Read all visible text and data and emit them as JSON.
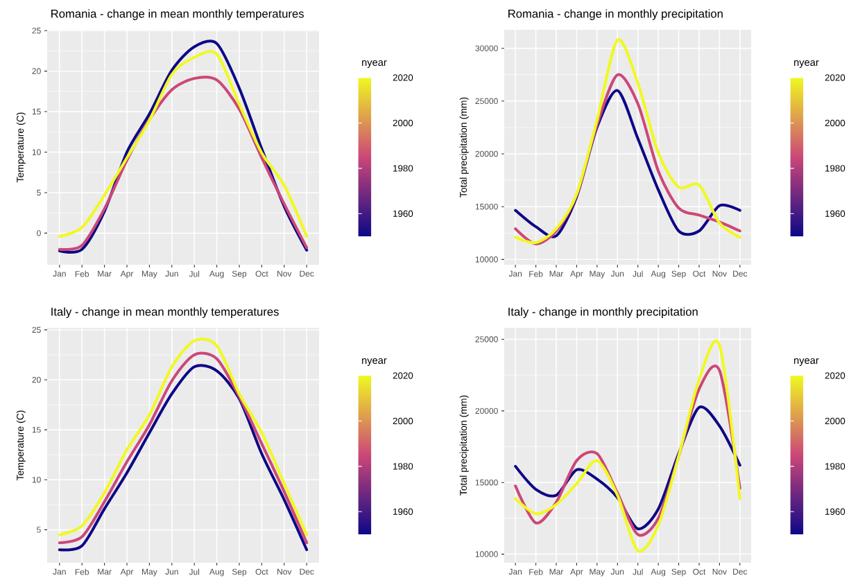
{
  "chart_data": [
    {
      "type": "line",
      "title": "Romania - change in mean monthly temperatures",
      "ylabel": "Temperature (C)",
      "categories": [
        "Jan",
        "Feb",
        "Mar",
        "Apr",
        "May",
        "Jun",
        "Jul",
        "Aug",
        "Sep",
        "Oct",
        "Nov",
        "Dec"
      ],
      "series": [
        {
          "color": "#0d0887",
          "values": [
            -2.2,
            -2.0,
            2.7,
            10.0,
            14.7,
            20.1,
            23.0,
            23.4,
            17.9,
            10.4,
            3.3,
            -2.1
          ]
        },
        {
          "color": "#cc4778",
          "values": [
            -2.0,
            -1.5,
            3.0,
            9.0,
            14.0,
            17.7,
            19.1,
            18.9,
            15.3,
            9.3,
            3.6,
            -1.8
          ]
        },
        {
          "color": "#f0f921",
          "values": [
            -0.4,
            0.7,
            4.7,
            9.3,
            13.9,
            19.6,
            21.7,
            22.1,
            15.9,
            9.9,
            5.9,
            -0.4
          ]
        }
      ],
      "ylim": [
        -3.9,
        25.1
      ],
      "yticks": [
        0,
        5,
        10,
        15,
        20,
        25
      ],
      "grid": true,
      "clabel": "nyear",
      "clim": [
        1950,
        2020
      ],
      "cticks": [
        1960,
        1980,
        2000,
        2020
      ]
    },
    {
      "type": "line",
      "title": "Romania - change in monthly precipitation",
      "ylabel": "Total precipitation (mm)",
      "categories": [
        "Jan",
        "Feb",
        "Mar",
        "Apr",
        "May",
        "Jun",
        "Jul",
        "Aug",
        "Sep",
        "Oct",
        "Nov",
        "Dec"
      ],
      "series": [
        {
          "color": "#0d0887",
          "values": [
            14650,
            13100,
            12240,
            15950,
            22540,
            26000,
            21450,
            16600,
            12700,
            12700,
            15100,
            14650
          ]
        },
        {
          "color": "#cc4778",
          "values": [
            12900,
            11470,
            12700,
            16070,
            22760,
            27480,
            24740,
            18380,
            14870,
            14200,
            13550,
            12700
          ]
        },
        {
          "color": "#f0f921",
          "values": [
            12100,
            11600,
            12900,
            16200,
            23200,
            30770,
            26700,
            20100,
            16850,
            17050,
            13450,
            12100
          ]
        }
      ],
      "ylim": [
        9500,
        31750
      ],
      "yticks": [
        10000,
        15000,
        20000,
        25000,
        30000
      ],
      "grid": true,
      "clabel": "nyear",
      "clim": [
        1950,
        2020
      ],
      "cticks": [
        1960,
        1980,
        2000,
        2020
      ]
    },
    {
      "type": "line",
      "title": "Italy - change in mean monthly temperatures",
      "ylabel": "Temperature (C)",
      "categories": [
        "Jan",
        "Feb",
        "Mar",
        "Apr",
        "May",
        "Jun",
        "Jul",
        "Aug",
        "Sep",
        "Oct",
        "Nov",
        "Dec"
      ],
      "series": [
        {
          "color": "#0d0887",
          "values": [
            3.0,
            3.4,
            7.1,
            10.7,
            14.7,
            18.6,
            21.3,
            20.9,
            18.1,
            12.6,
            8.0,
            3.0
          ]
        },
        {
          "color": "#cc4778",
          "values": [
            3.7,
            4.3,
            7.8,
            11.8,
            15.5,
            19.9,
            22.5,
            22.1,
            18.3,
            13.6,
            8.8,
            3.7
          ]
        },
        {
          "color": "#f0f921",
          "values": [
            4.5,
            5.4,
            8.7,
            13.0,
            16.5,
            21.3,
            23.9,
            23.4,
            18.6,
            14.7,
            9.6,
            4.5
          ]
        }
      ],
      "ylim": [
        1.7,
        25.2
      ],
      "yticks": [
        5,
        10,
        15,
        20,
        25
      ],
      "grid": true,
      "clabel": "nyear",
      "clim": [
        1950,
        2020
      ],
      "cticks": [
        1960,
        1980,
        2000,
        2020
      ]
    },
    {
      "type": "line",
      "title": "Italy - change in monthly precipitation",
      "ylabel": "Total precipitation (mm)",
      "categories": [
        "Jan",
        "Feb",
        "Mar",
        "Apr",
        "May",
        "Jun",
        "Jul",
        "Aug",
        "Sep",
        "Oct",
        "Nov",
        "Dec"
      ],
      "series": [
        {
          "color": "#0d0887",
          "values": [
            16130,
            14520,
            14110,
            15890,
            15240,
            13950,
            11770,
            13150,
            17020,
            20240,
            18950,
            16210
          ]
        },
        {
          "color": "#cc4778",
          "values": [
            14760,
            12180,
            13630,
            16530,
            17020,
            14270,
            11370,
            12500,
            16850,
            21530,
            22820,
            14600
          ]
        },
        {
          "color": "#f0f921",
          "values": [
            13870,
            12820,
            13470,
            14920,
            16530,
            14110,
            10240,
            12020,
            16850,
            22180,
            24600,
            13870
          ]
        }
      ],
      "ylim": [
        9400,
        25800
      ],
      "yticks": [
        10000,
        15000,
        20000,
        25000
      ],
      "grid": true,
      "clabel": "nyear",
      "clim": [
        1950,
        2020
      ],
      "cticks": [
        1960,
        1980,
        2000,
        2020
      ]
    }
  ]
}
